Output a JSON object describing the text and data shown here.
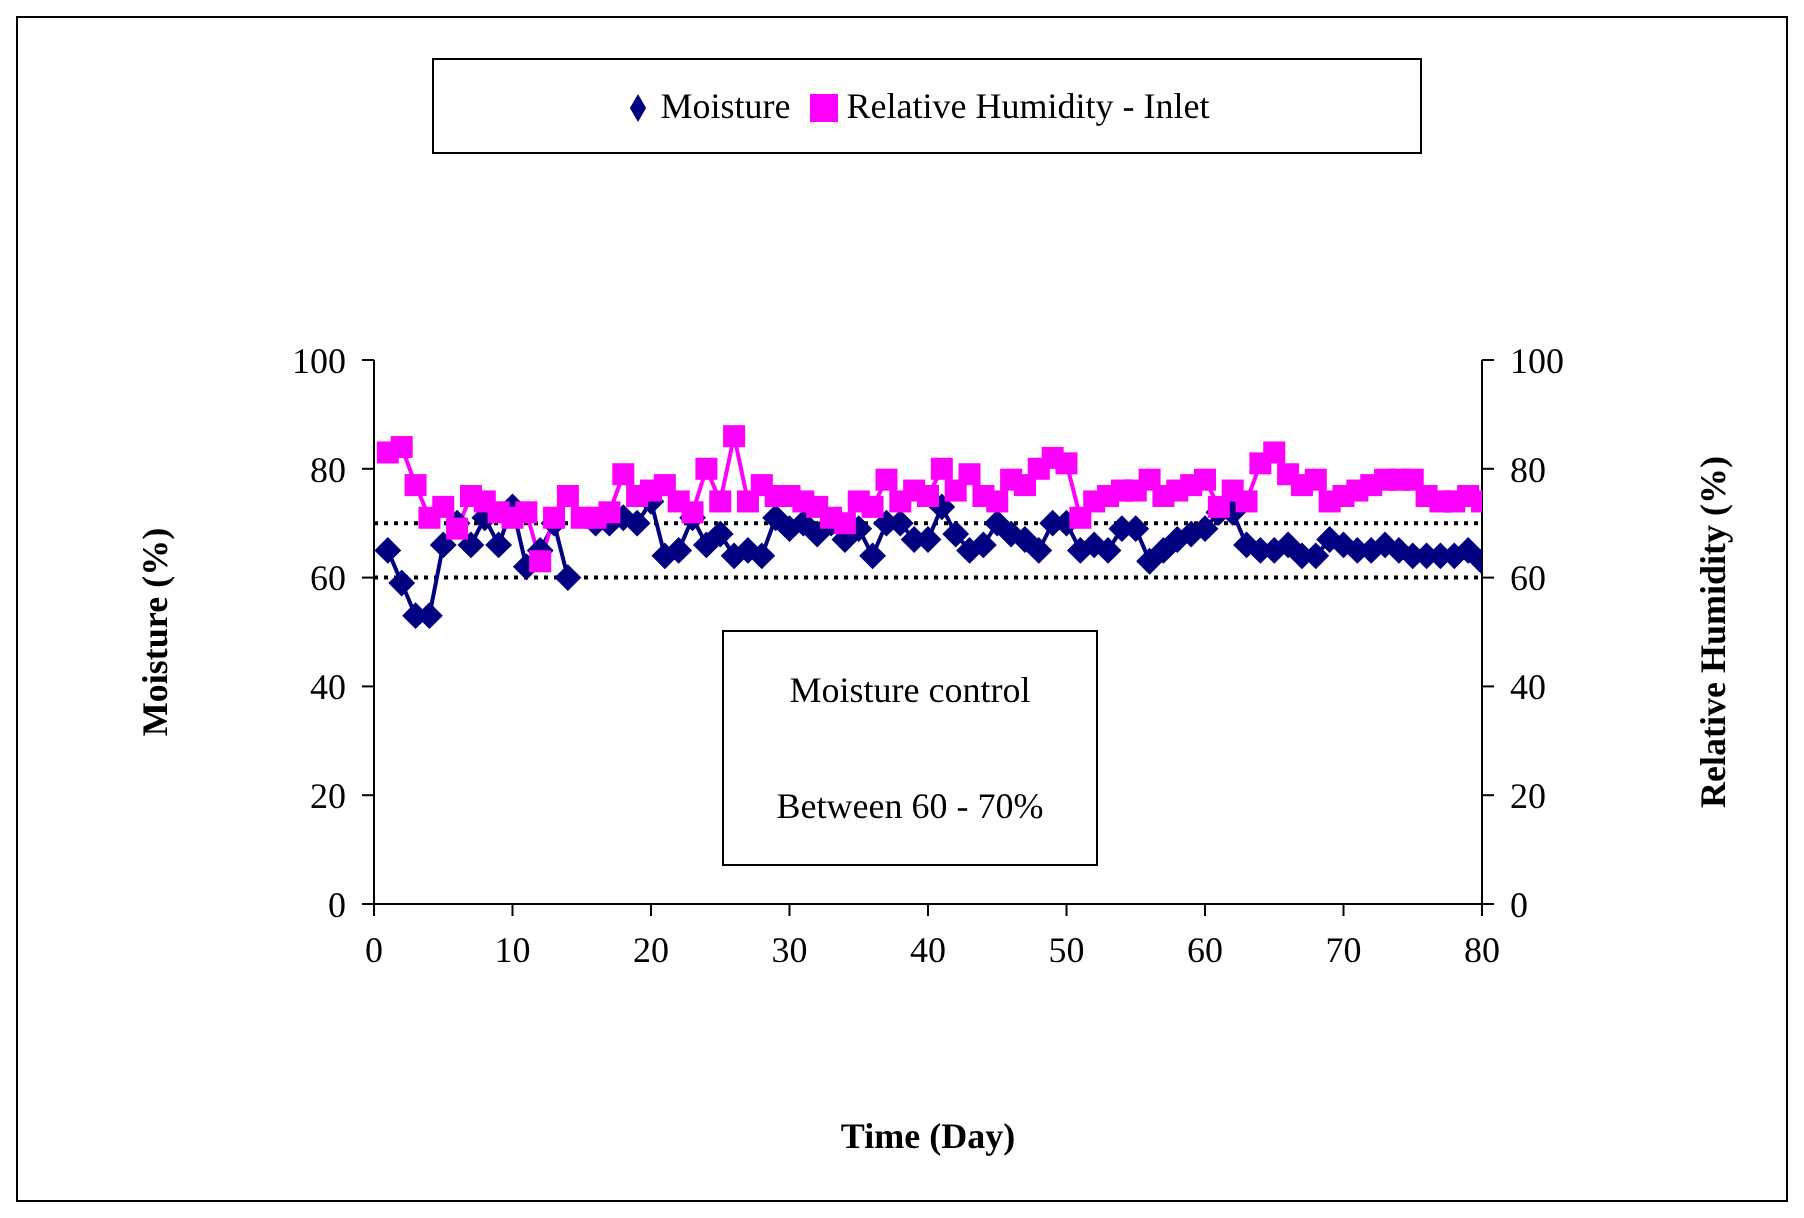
{
  "chart_data": {
    "type": "line",
    "xlabel": "Time (Day)",
    "ylabel": "Moisture (%)",
    "y2label": "Relative Humidity (%)",
    "x": [
      1,
      2,
      3,
      4,
      5,
      6,
      7,
      8,
      9,
      10,
      11,
      12,
      13,
      14,
      15,
      16,
      17,
      18,
      19,
      20,
      21,
      22,
      23,
      24,
      25,
      26,
      27,
      28,
      29,
      30,
      31,
      32,
      33,
      34,
      35,
      36,
      37,
      38,
      39,
      40,
      41,
      42,
      43,
      44,
      45,
      46,
      47,
      48,
      49,
      50,
      51,
      52,
      53,
      54,
      55,
      56,
      57,
      58,
      59,
      60,
      61,
      62,
      63,
      64,
      65,
      66,
      67,
      68,
      69,
      70,
      71,
      72,
      73,
      74,
      75,
      76,
      77,
      78,
      79,
      80
    ],
    "series": [
      {
        "name": "Moisture",
        "color": "#000080",
        "marker": "diamond",
        "values": [
          65,
          59,
          53,
          53,
          66,
          70,
          66,
          71,
          66,
          73,
          62,
          65,
          70,
          60,
          null,
          70,
          70,
          71,
          70,
          74,
          64,
          65,
          71,
          66,
          68,
          64,
          65,
          64,
          71,
          69,
          70,
          68,
          70,
          67,
          69,
          64,
          70,
          70,
          67,
          67,
          73,
          68,
          65,
          66,
          70,
          68,
          67,
          65,
          70,
          70,
          65,
          66,
          65,
          69,
          69,
          63,
          65,
          67,
          68,
          69,
          72,
          72,
          66,
          65,
          65,
          66,
          64,
          64,
          67,
          66,
          65,
          65,
          66,
          65,
          64,
          64,
          64,
          64,
          65,
          63
        ]
      },
      {
        "name": "Relative Humidity - Inlet",
        "color": "#ff00ff",
        "marker": "square",
        "axis": "y2",
        "values": [
          83,
          84,
          77,
          71,
          73,
          69,
          75,
          74,
          72,
          71,
          72,
          63,
          71,
          75,
          71,
          71,
          72,
          79,
          75,
          76,
          77,
          74,
          72,
          80,
          74,
          86,
          74,
          77,
          75,
          75,
          74,
          73,
          71,
          70,
          74,
          73,
          78,
          74,
          76,
          75,
          80,
          76,
          79,
          75,
          74,
          78,
          77,
          80,
          82,
          81,
          71,
          74,
          75,
          76,
          76,
          78,
          75,
          76,
          77,
          78,
          73,
          76,
          74,
          81,
          83,
          79,
          77,
          78,
          74,
          75,
          76,
          77,
          78,
          78,
          78,
          75,
          74,
          74,
          75,
          74
        ]
      }
    ],
    "xlim": [
      0,
      80
    ],
    "xticks": [
      0,
      10,
      20,
      30,
      40,
      50,
      60,
      70,
      80
    ],
    "ylim": [
      0,
      100
    ],
    "yticks": [
      0,
      20,
      40,
      60,
      80,
      100
    ],
    "y2lim": [
      0,
      100
    ],
    "y2ticks": [
      0,
      20,
      40,
      60,
      80,
      100
    ],
    "ref_lines": [
      {
        "axis": "y",
        "value": 70,
        "color": "#000000",
        "line_style": "dotted"
      },
      {
        "axis": "y",
        "value": 60,
        "color": "#000000",
        "line_style": "dotted"
      }
    ],
    "annotations": [
      "Moisture control",
      "Between 60 - 70%"
    ],
    "legend": "top",
    "grid": false
  }
}
